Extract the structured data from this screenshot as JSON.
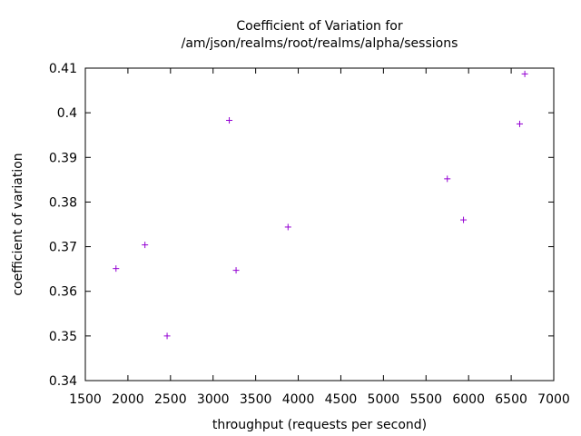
{
  "chart_data": {
    "type": "scatter",
    "title_lines": [
      "Coefficient of Variation for",
      "/am/json/realms/root/realms/alpha/sessions"
    ],
    "xlabel": "throughput (requests per second)",
    "ylabel": "coefficient of variation",
    "xlim": [
      1500,
      7000
    ],
    "ylim": [
      0.34,
      0.41
    ],
    "x_ticks": [
      1500,
      2000,
      2500,
      3000,
      3500,
      4000,
      4500,
      5000,
      5500,
      6000,
      6500,
      7000
    ],
    "y_ticks": [
      0.34,
      0.35,
      0.36,
      0.37,
      0.38,
      0.39,
      0.4,
      0.41
    ],
    "x_tick_labels": [
      "1500",
      "2000",
      "2500",
      "3000",
      "3500",
      "4000",
      "4500",
      "5000",
      "5500",
      "6000",
      "6500",
      "7000"
    ],
    "y_tick_labels": [
      "0.34",
      "0.35",
      "0.36",
      "0.37",
      "0.38",
      "0.39",
      "0.4",
      "0.41"
    ],
    "grid": false,
    "marker": "+",
    "color": "#9400d3",
    "points": [
      {
        "x": 1860,
        "y": 0.3651
      },
      {
        "x": 2200,
        "y": 0.3704
      },
      {
        "x": 2460,
        "y": 0.35
      },
      {
        "x": 3190,
        "y": 0.3983
      },
      {
        "x": 3270,
        "y": 0.3647
      },
      {
        "x": 3880,
        "y": 0.3744
      },
      {
        "x": 5750,
        "y": 0.3852
      },
      {
        "x": 5940,
        "y": 0.376
      },
      {
        "x": 6600,
        "y": 0.3975
      },
      {
        "x": 6660,
        "y": 0.4087
      }
    ]
  }
}
